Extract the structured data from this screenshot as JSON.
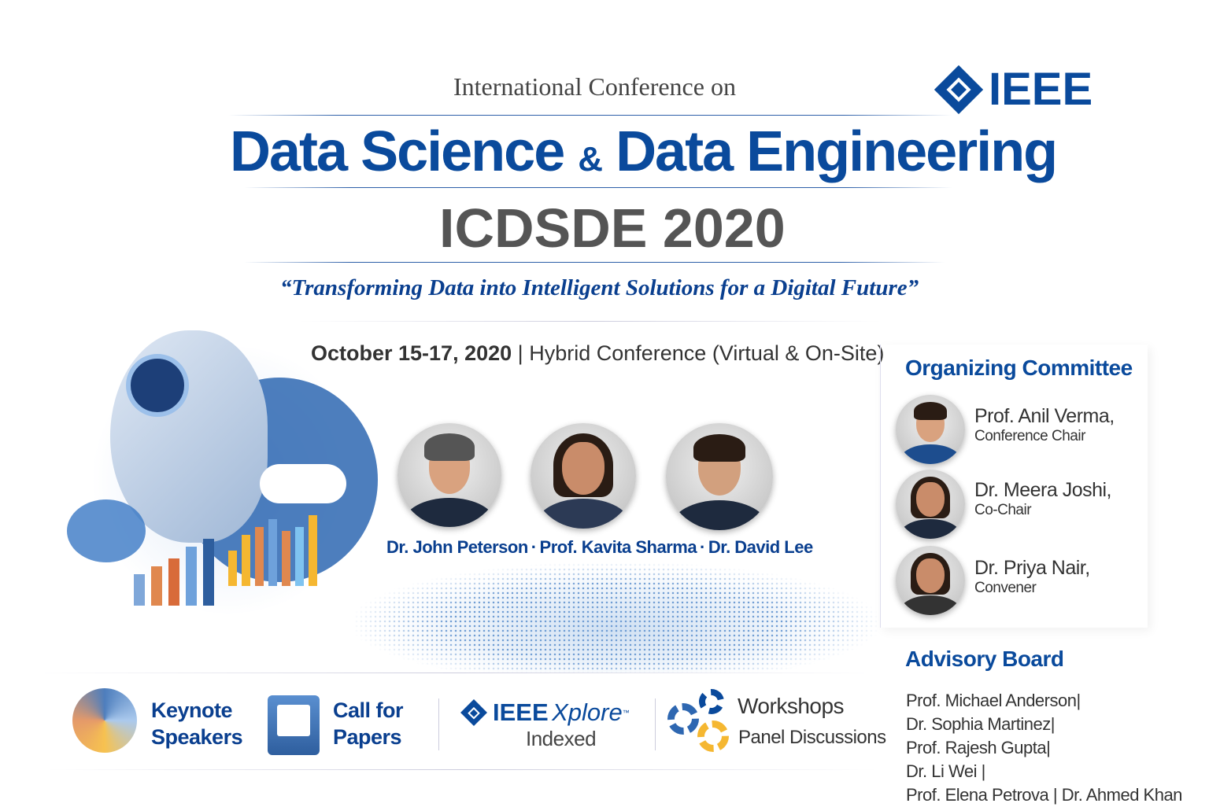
{
  "header": {
    "pre_title": "International Conference on",
    "title_part1": "Data Science",
    "title_amp": "&",
    "title_part2": "Data Engineering",
    "acronym": "ICDSDE 2020",
    "tagline": "“Transforming Data into Intelligent Solutions for a Digital Future”",
    "logo_text": "IEEE"
  },
  "event": {
    "dates": "October 15-17, 2020",
    "separator": "|",
    "format": "Hybrid Conference (Virtual & On-Site)"
  },
  "speakers": [
    {
      "name": "Dr. John Peterson"
    },
    {
      "name": "Prof. Kavita Sharma"
    },
    {
      "name": "Dr. David Lee"
    }
  ],
  "speaker_sep": "·",
  "committee": {
    "title": "Organizing Committee",
    "members": [
      {
        "name": "Prof. Anil Verma,",
        "role": "Conference Chair"
      },
      {
        "name": "Dr. Meera Joshi,",
        "role": "Co-Chair"
      },
      {
        "name": "Dr. Priya Nair,",
        "role": "Convener"
      }
    ]
  },
  "advisory": {
    "title": "Advisory Board",
    "lines": [
      "Prof. Michael Anderson|",
      "Dr. Sophia Martinez|",
      "Prof. Rajesh Gupta|",
      "Dr. Li Wei |",
      "Prof. Elena Petrova | Dr. Ahmed Khan"
    ]
  },
  "features": {
    "keynote": [
      "Keynote",
      "Speakers"
    ],
    "cfp": [
      "Call for",
      "Papers"
    ],
    "xplore": {
      "brand": "IEEE",
      "product": "Xplore",
      "tm": "™",
      "sub": "Indexed"
    },
    "workshops": [
      "Workshops",
      "Panel Discussions"
    ]
  },
  "colors": {
    "brand": "#0a4a9c",
    "text": "#333333",
    "accent": "#f5b731"
  }
}
